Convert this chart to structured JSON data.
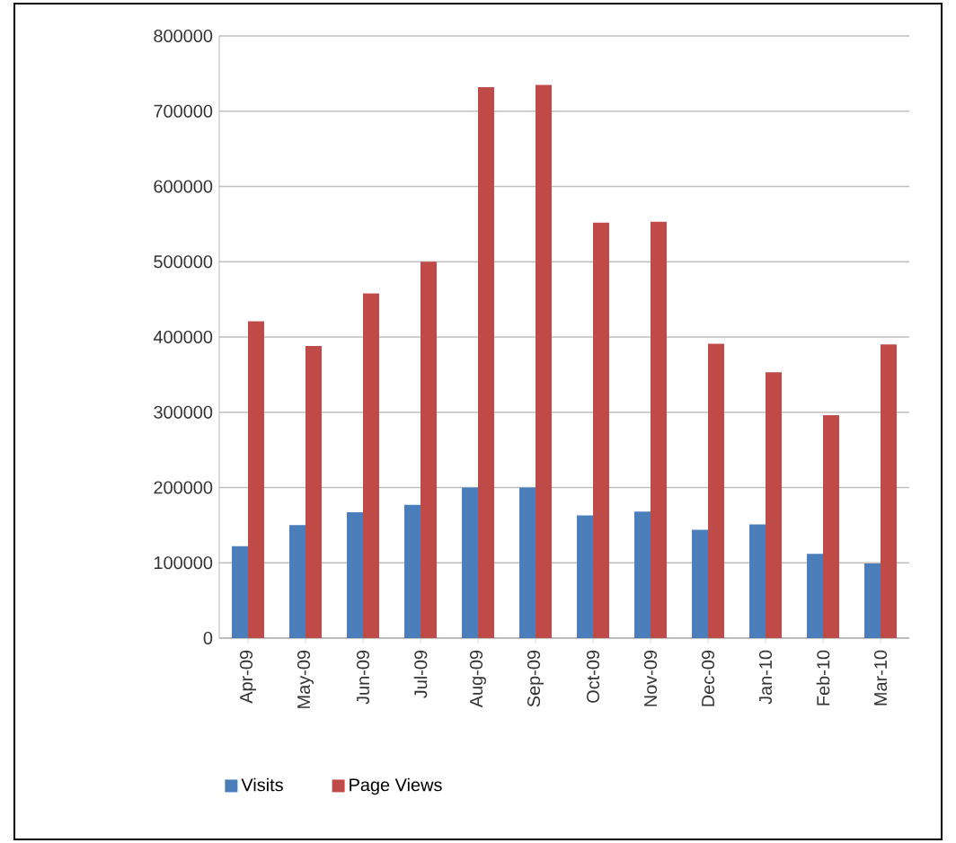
{
  "chart_data": {
    "type": "bar",
    "categories": [
      "Apr-09",
      "May-09",
      "Jun-09",
      "Jul-09",
      "Aug-09",
      "Sep-09",
      "Oct-09",
      "Nov-09",
      "Dec-09",
      "Jan-10",
      "Feb-10",
      "Mar-10"
    ],
    "series": [
      {
        "name": "Visits",
        "color": "#4a7ebb",
        "values": [
          122000,
          150000,
          167000,
          177000,
          200000,
          200000,
          163000,
          168000,
          144000,
          151000,
          112000,
          99000
        ]
      },
      {
        "name": "Page Views",
        "color": "#be4b48",
        "values": [
          421000,
          388000,
          458000,
          500000,
          732000,
          735000,
          552000,
          553000,
          391000,
          353000,
          296000,
          390000
        ]
      }
    ],
    "ylim": [
      0,
      800000
    ],
    "yticks": [
      0,
      100000,
      200000,
      300000,
      400000,
      500000,
      600000,
      700000,
      800000
    ],
    "grid": "y",
    "legend": "bottom"
  }
}
